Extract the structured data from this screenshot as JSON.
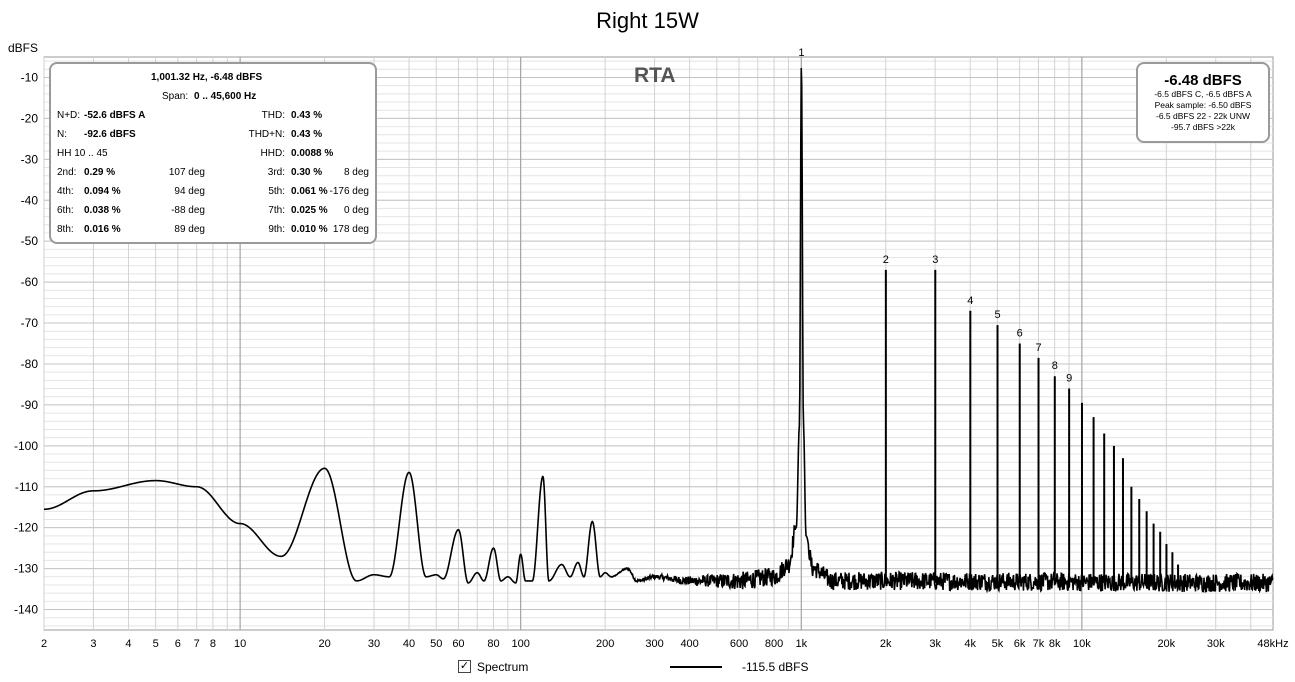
{
  "chart_data": {
    "type": "line",
    "title": "Right 15W",
    "ylabel": "dBFS",
    "xscale": "log",
    "xlim": [
      2,
      48000
    ],
    "ylim": [
      -145,
      -5
    ],
    "yticks": [
      -10,
      -20,
      -30,
      -40,
      -50,
      -60,
      -70,
      -80,
      -90,
      -100,
      -110,
      -120,
      -130,
      -140
    ],
    "xticks": [
      {
        "v": 2,
        "l": "2"
      },
      {
        "v": 3,
        "l": "3"
      },
      {
        "v": 4,
        "l": "4"
      },
      {
        "v": 5,
        "l": "5"
      },
      {
        "v": 6,
        "l": "6"
      },
      {
        "v": 7,
        "l": "7"
      },
      {
        "v": 8,
        "l": "8"
      },
      {
        "v": 10,
        "l": "10"
      },
      {
        "v": 20,
        "l": "20"
      },
      {
        "v": 30,
        "l": "30"
      },
      {
        "v": 40,
        "l": "40"
      },
      {
        "v": 50,
        "l": "50"
      },
      {
        "v": 60,
        "l": "60"
      },
      {
        "v": 80,
        "l": "80"
      },
      {
        "v": 100,
        "l": "100"
      },
      {
        "v": 200,
        "l": "200"
      },
      {
        "v": 300,
        "l": "300"
      },
      {
        "v": 400,
        "l": "400"
      },
      {
        "v": 600,
        "l": "600"
      },
      {
        "v": 800,
        "l": "800"
      },
      {
        "v": 1000,
        "l": "1k"
      },
      {
        "v": 2000,
        "l": "2k"
      },
      {
        "v": 3000,
        "l": "3k"
      },
      {
        "v": 4000,
        "l": "4k"
      },
      {
        "v": 5000,
        "l": "5k"
      },
      {
        "v": 6000,
        "l": "6k"
      },
      {
        "v": 7000,
        "l": "7k"
      },
      {
        "v": 8000,
        "l": "8k"
      },
      {
        "v": 10000,
        "l": "10k"
      },
      {
        "v": 20000,
        "l": "20k"
      },
      {
        "v": 30000,
        "l": "30k"
      },
      {
        "v": 48000,
        "l": "48kHz"
      }
    ],
    "grid": true,
    "series": [
      {
        "name": "Spectrum",
        "color": "#000000",
        "level": "-115.5 dBFS",
        "baseline": [
          [
            2,
            -115.5
          ],
          [
            3,
            -111
          ],
          [
            5,
            -108.5
          ],
          [
            7,
            -110
          ],
          [
            10,
            -119
          ],
          [
            14,
            -127
          ],
          [
            20,
            -105.5
          ],
          [
            26,
            -133
          ],
          [
            30,
            -131.5
          ],
          [
            34,
            -132
          ],
          [
            40,
            -106.5
          ],
          [
            46,
            -132
          ],
          [
            50,
            -131.5
          ],
          [
            53,
            -132.5
          ],
          [
            60,
            -120.5
          ],
          [
            65,
            -133.5
          ],
          [
            70,
            -131
          ],
          [
            74,
            -133
          ],
          [
            80,
            -125
          ],
          [
            85,
            -133
          ],
          [
            90,
            -132
          ],
          [
            96,
            -133.5
          ],
          [
            100,
            -126.5
          ],
          [
            104,
            -133
          ],
          [
            110,
            -133
          ],
          [
            120,
            -107.5
          ],
          [
            126,
            -133
          ],
          [
            140,
            -129
          ],
          [
            150,
            -132
          ],
          [
            160,
            -128.5
          ],
          [
            168,
            -132
          ],
          [
            180,
            -118.5
          ],
          [
            192,
            -132
          ],
          [
            200,
            -131
          ],
          [
            210,
            -132
          ],
          [
            240,
            -130
          ],
          [
            260,
            -133
          ],
          [
            300,
            -132
          ],
          [
            400,
            -133
          ],
          [
            600,
            -133
          ],
          [
            800,
            -132
          ],
          [
            900,
            -129
          ],
          [
            960,
            -120
          ],
          [
            985,
            -95
          ],
          [
            1001,
            -6.48
          ],
          [
            1018,
            -95
          ],
          [
            1040,
            -122
          ],
          [
            1100,
            -130
          ],
          [
            1300,
            -133
          ],
          [
            48000,
            -133.5
          ]
        ],
        "harmonics": [
          {
            "f": 1001,
            "db": -6.48,
            "label": "1"
          },
          {
            "f": 2002,
            "db": -57,
            "label": "2"
          },
          {
            "f": 3003,
            "db": -57,
            "label": "3"
          },
          {
            "f": 4004,
            "db": -67,
            "label": "4"
          },
          {
            "f": 5005,
            "db": -70.5,
            "label": "5"
          },
          {
            "f": 6006,
            "db": -75,
            "label": "6"
          },
          {
            "f": 7007,
            "db": -78.5,
            "label": "7"
          },
          {
            "f": 8008,
            "db": -83,
            "label": "8"
          },
          {
            "f": 9009,
            "db": -86,
            "label": "9"
          },
          {
            "f": 10010,
            "db": -89.5,
            "label": ""
          },
          {
            "f": 11011,
            "db": -93,
            "label": ""
          },
          {
            "f": 12012,
            "db": -97,
            "label": ""
          },
          {
            "f": 13013,
            "db": -100,
            "label": ""
          },
          {
            "f": 14014,
            "db": -103,
            "label": ""
          },
          {
            "f": 15015,
            "db": -110,
            "label": ""
          },
          {
            "f": 16016,
            "db": -113,
            "label": ""
          },
          {
            "f": 17017,
            "db": -116,
            "label": ""
          },
          {
            "f": 18018,
            "db": -119,
            "label": ""
          },
          {
            "f": 19019,
            "db": -121,
            "label": ""
          },
          {
            "f": 20020,
            "db": -124,
            "label": ""
          },
          {
            "f": 21021,
            "db": -126,
            "label": ""
          },
          {
            "f": 22022,
            "db": -129,
            "label": ""
          }
        ]
      }
    ]
  },
  "overlay": {
    "rta": "RTA",
    "stats": {
      "header1": "1,001.32 Hz, -6.48 dBFS",
      "span_label": "Span:",
      "span_value": "0 .. 45,600 Hz",
      "rows": [
        {
          "a_label": "N+D:",
          "a_value": "-52.6 dBFS A",
          "a_deg": "",
          "b_label": "THD:",
          "b_value": "0.43 %",
          "b_deg": ""
        },
        {
          "a_label": "N:",
          "a_value": "-92.6 dBFS",
          "a_deg": "",
          "b_label": "THD+N:",
          "b_value": "0.43 %",
          "b_deg": ""
        },
        {
          "a_label": "HH 10 .. 45",
          "a_value": "",
          "a_deg": "",
          "b_label": "HHD:",
          "b_value": "0.0088 %",
          "b_deg": ""
        },
        {
          "a_label": "2nd:",
          "a_value": "0.29 %",
          "a_deg": "107 deg",
          "b_label": "3rd:",
          "b_value": "0.30 %",
          "b_deg": "8 deg"
        },
        {
          "a_label": "4th:",
          "a_value": "0.094 %",
          "a_deg": "94 deg",
          "b_label": "5th:",
          "b_value": "0.061 %",
          "b_deg": "-176 deg"
        },
        {
          "a_label": "6th:",
          "a_value": "0.038 %",
          "a_deg": "-88 deg",
          "b_label": "7th:",
          "b_value": "0.025 %",
          "b_deg": "0 deg"
        },
        {
          "a_label": "8th:",
          "a_value": "0.016 %",
          "a_deg": "89 deg",
          "b_label": "9th:",
          "b_value": "0.010 %",
          "b_deg": "178 deg"
        }
      ]
    },
    "level": {
      "big": "-6.48 dBFS",
      "lines": [
        "-6.5 dBFS C, -6.5 dBFS A",
        "Peak sample: -6.50 dBFS",
        "-6.5 dBFS 22 - 22k UNW",
        "-95.7 dBFS >22k"
      ]
    }
  },
  "legend": {
    "checkbox_label": "Spectrum",
    "checked": true,
    "level": "-115.5 dBFS"
  }
}
